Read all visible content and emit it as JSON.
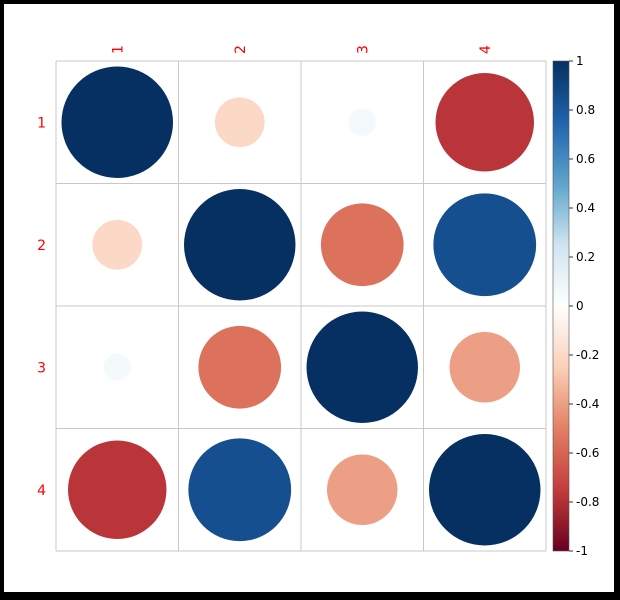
{
  "chart_data": {
    "type": "heatmap",
    "style": "correlation-circles",
    "row_labels": [
      "1",
      "2",
      "3",
      "4"
    ],
    "col_labels": [
      "1",
      "2",
      "3",
      "4"
    ],
    "matrix": [
      [
        1.0,
        -0.2,
        0.06,
        -0.78
      ],
      [
        -0.2,
        1.0,
        -0.55,
        0.85
      ],
      [
        0.06,
        -0.55,
        1.0,
        -0.4
      ],
      [
        -0.78,
        0.85,
        -0.4,
        1.0
      ]
    ],
    "colorbar": {
      "range": [
        -1,
        1
      ],
      "ticks": [
        "-1",
        "-0.8",
        "-0.6",
        "-0.4",
        "-0.2",
        "0",
        "0.2",
        "0.4",
        "0.6",
        "0.8",
        "1"
      ],
      "colors": {
        "-1": "#67001f",
        "-0.75": "#c43c3c",
        "-0.5": "#e27f63",
        "-0.25": "#fbd0b9",
        "0": "#ffffff",
        "0.25": "#d0e4f0",
        "0.5": "#5ea4cc",
        "0.75": "#1f64ad",
        "1": "#053061"
      }
    },
    "label_color": "#ff0000",
    "grid": true
  }
}
